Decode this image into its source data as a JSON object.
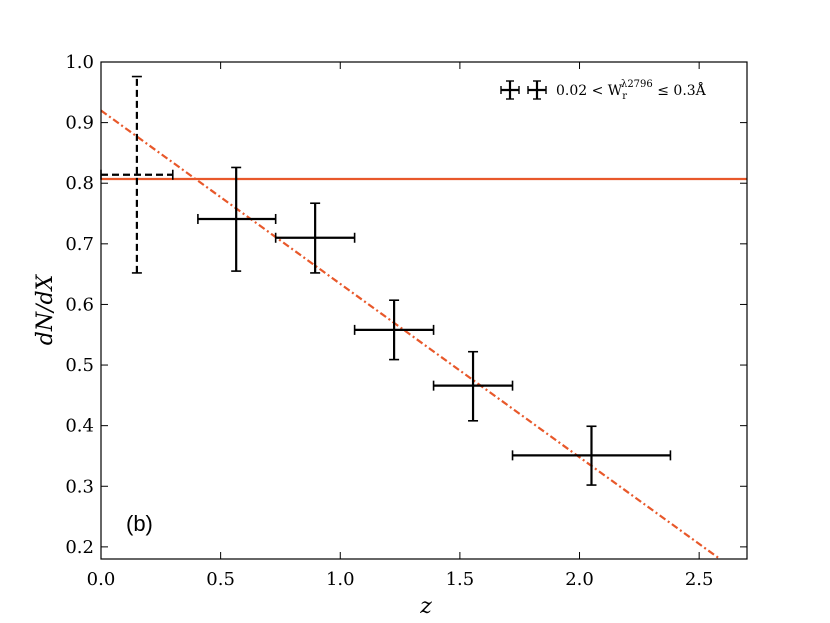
{
  "chart_data": {
    "type": "scatter",
    "xlabel": "z",
    "ylabel": "dN/dX",
    "xlim": [
      0.0,
      2.7
    ],
    "ylim": [
      0.18,
      1.0
    ],
    "x_ticks": [
      0.0,
      0.5,
      1.0,
      1.5,
      2.0,
      2.5
    ],
    "x_tick_labels": [
      "0.0",
      "0.5",
      "1.0",
      "1.5",
      "2.0",
      "2.5"
    ],
    "y_ticks": [
      0.2,
      0.3,
      0.4,
      0.5,
      0.6,
      0.7,
      0.8,
      0.9,
      1.0
    ],
    "y_tick_labels": [
      "0.2",
      "0.3",
      "0.4",
      "0.5",
      "0.6",
      "0.7",
      "0.8",
      "0.9",
      "1.0"
    ],
    "grid": false,
    "panel_label": "(b)",
    "legend_position": "top-right",
    "series": [
      {
        "name": "0.02 < W_r^λ2796 ≤ 0.3Å",
        "legend_text": "0.02 < W",
        "legend_sub": "r",
        "legend_sup": "λ2796",
        "legend_tail": " ≤ 0.3Å",
        "style": "solid",
        "color": "#000000",
        "points": [
          {
            "x": 0.565,
            "x_lo": 0.405,
            "x_hi": 0.73,
            "y": 0.741,
            "y_lo": 0.655,
            "y_hi": 0.826
          },
          {
            "x": 0.895,
            "x_lo": 0.73,
            "x_hi": 1.06,
            "y": 0.71,
            "y_lo": 0.652,
            "y_hi": 0.767
          },
          {
            "x": 1.225,
            "x_lo": 1.06,
            "x_hi": 1.39,
            "y": 0.558,
            "y_lo": 0.509,
            "y_hi": 0.607
          },
          {
            "x": 1.555,
            "x_lo": 1.39,
            "x_hi": 1.72,
            "y": 0.466,
            "y_lo": 0.408,
            "y_hi": 0.522
          },
          {
            "x": 2.05,
            "x_lo": 1.72,
            "x_hi": 2.38,
            "y": 0.351,
            "y_lo": 0.302,
            "y_hi": 0.399
          }
        ]
      },
      {
        "name": "low-z point",
        "style": "dashed",
        "color": "#000000",
        "points": [
          {
            "x": 0.15,
            "x_lo": 0.0,
            "x_hi": 0.3,
            "y": 0.814,
            "y_lo": 0.652,
            "y_hi": 0.976
          }
        ]
      }
    ],
    "lines": [
      {
        "kind": "horizontal",
        "y": 0.807,
        "style": "solid",
        "color": "#e8582a"
      },
      {
        "kind": "linear",
        "x0": 0.0,
        "y0": 0.92,
        "x1": 2.58,
        "y1": 0.182,
        "style": "dashdot",
        "color": "#e8582a"
      }
    ]
  }
}
